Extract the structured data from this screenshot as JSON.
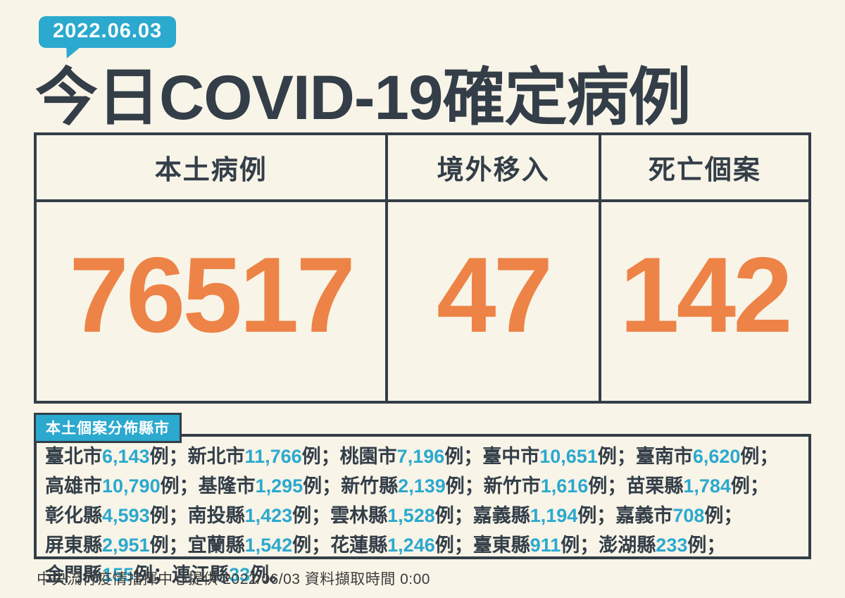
{
  "badge": {
    "date": "2022.06.03"
  },
  "title": "今日COVID-19確定病例",
  "summary_table": {
    "columns": [
      {
        "label": "本土病例",
        "value": "76517"
      },
      {
        "label": "境外移入",
        "value": "47"
      },
      {
        "label": "死亡個案",
        "value": "142"
      }
    ]
  },
  "distribution": {
    "label": "本土個案分佈縣市",
    "unit": "例",
    "separator": "；",
    "terminator": "例。",
    "entries": [
      {
        "region": "臺北市",
        "count": "6,143"
      },
      {
        "region": "新北市",
        "count": "11,766"
      },
      {
        "region": "桃園市",
        "count": "7,196"
      },
      {
        "region": "臺中市",
        "count": "10,651"
      },
      {
        "region": "臺南市",
        "count": "6,620"
      },
      {
        "region": "高雄市",
        "count": "10,790"
      },
      {
        "region": "基隆市",
        "count": "1,295"
      },
      {
        "region": "新竹縣",
        "count": "2,139"
      },
      {
        "region": "新竹市",
        "count": "1,616"
      },
      {
        "region": "苗栗縣",
        "count": "1,784"
      },
      {
        "region": "彰化縣",
        "count": "4,593"
      },
      {
        "region": "南投縣",
        "count": "1,423"
      },
      {
        "region": "雲林縣",
        "count": "1,528"
      },
      {
        "region": "嘉義縣",
        "count": "1,194"
      },
      {
        "region": "嘉義市",
        "count": "708"
      },
      {
        "region": "屏東縣",
        "count": "2,951"
      },
      {
        "region": "宜蘭縣",
        "count": "1,542"
      },
      {
        "region": "花蓮縣",
        "count": "1,246"
      },
      {
        "region": "臺東縣",
        "count": "911"
      },
      {
        "region": "澎湖縣",
        "count": "233"
      },
      {
        "region": "金門縣",
        "count": "155"
      },
      {
        "region": "連江縣",
        "count": "33"
      }
    ]
  },
  "footer": "中央流行疫情指揮中心提供 2022/06/03  資料擷取時間 0:00",
  "colors": {
    "background": "#F8F4E8",
    "ink": "#333E48",
    "accent_cyan": "#2BA9CE",
    "accent_orange": "#ED8346"
  }
}
